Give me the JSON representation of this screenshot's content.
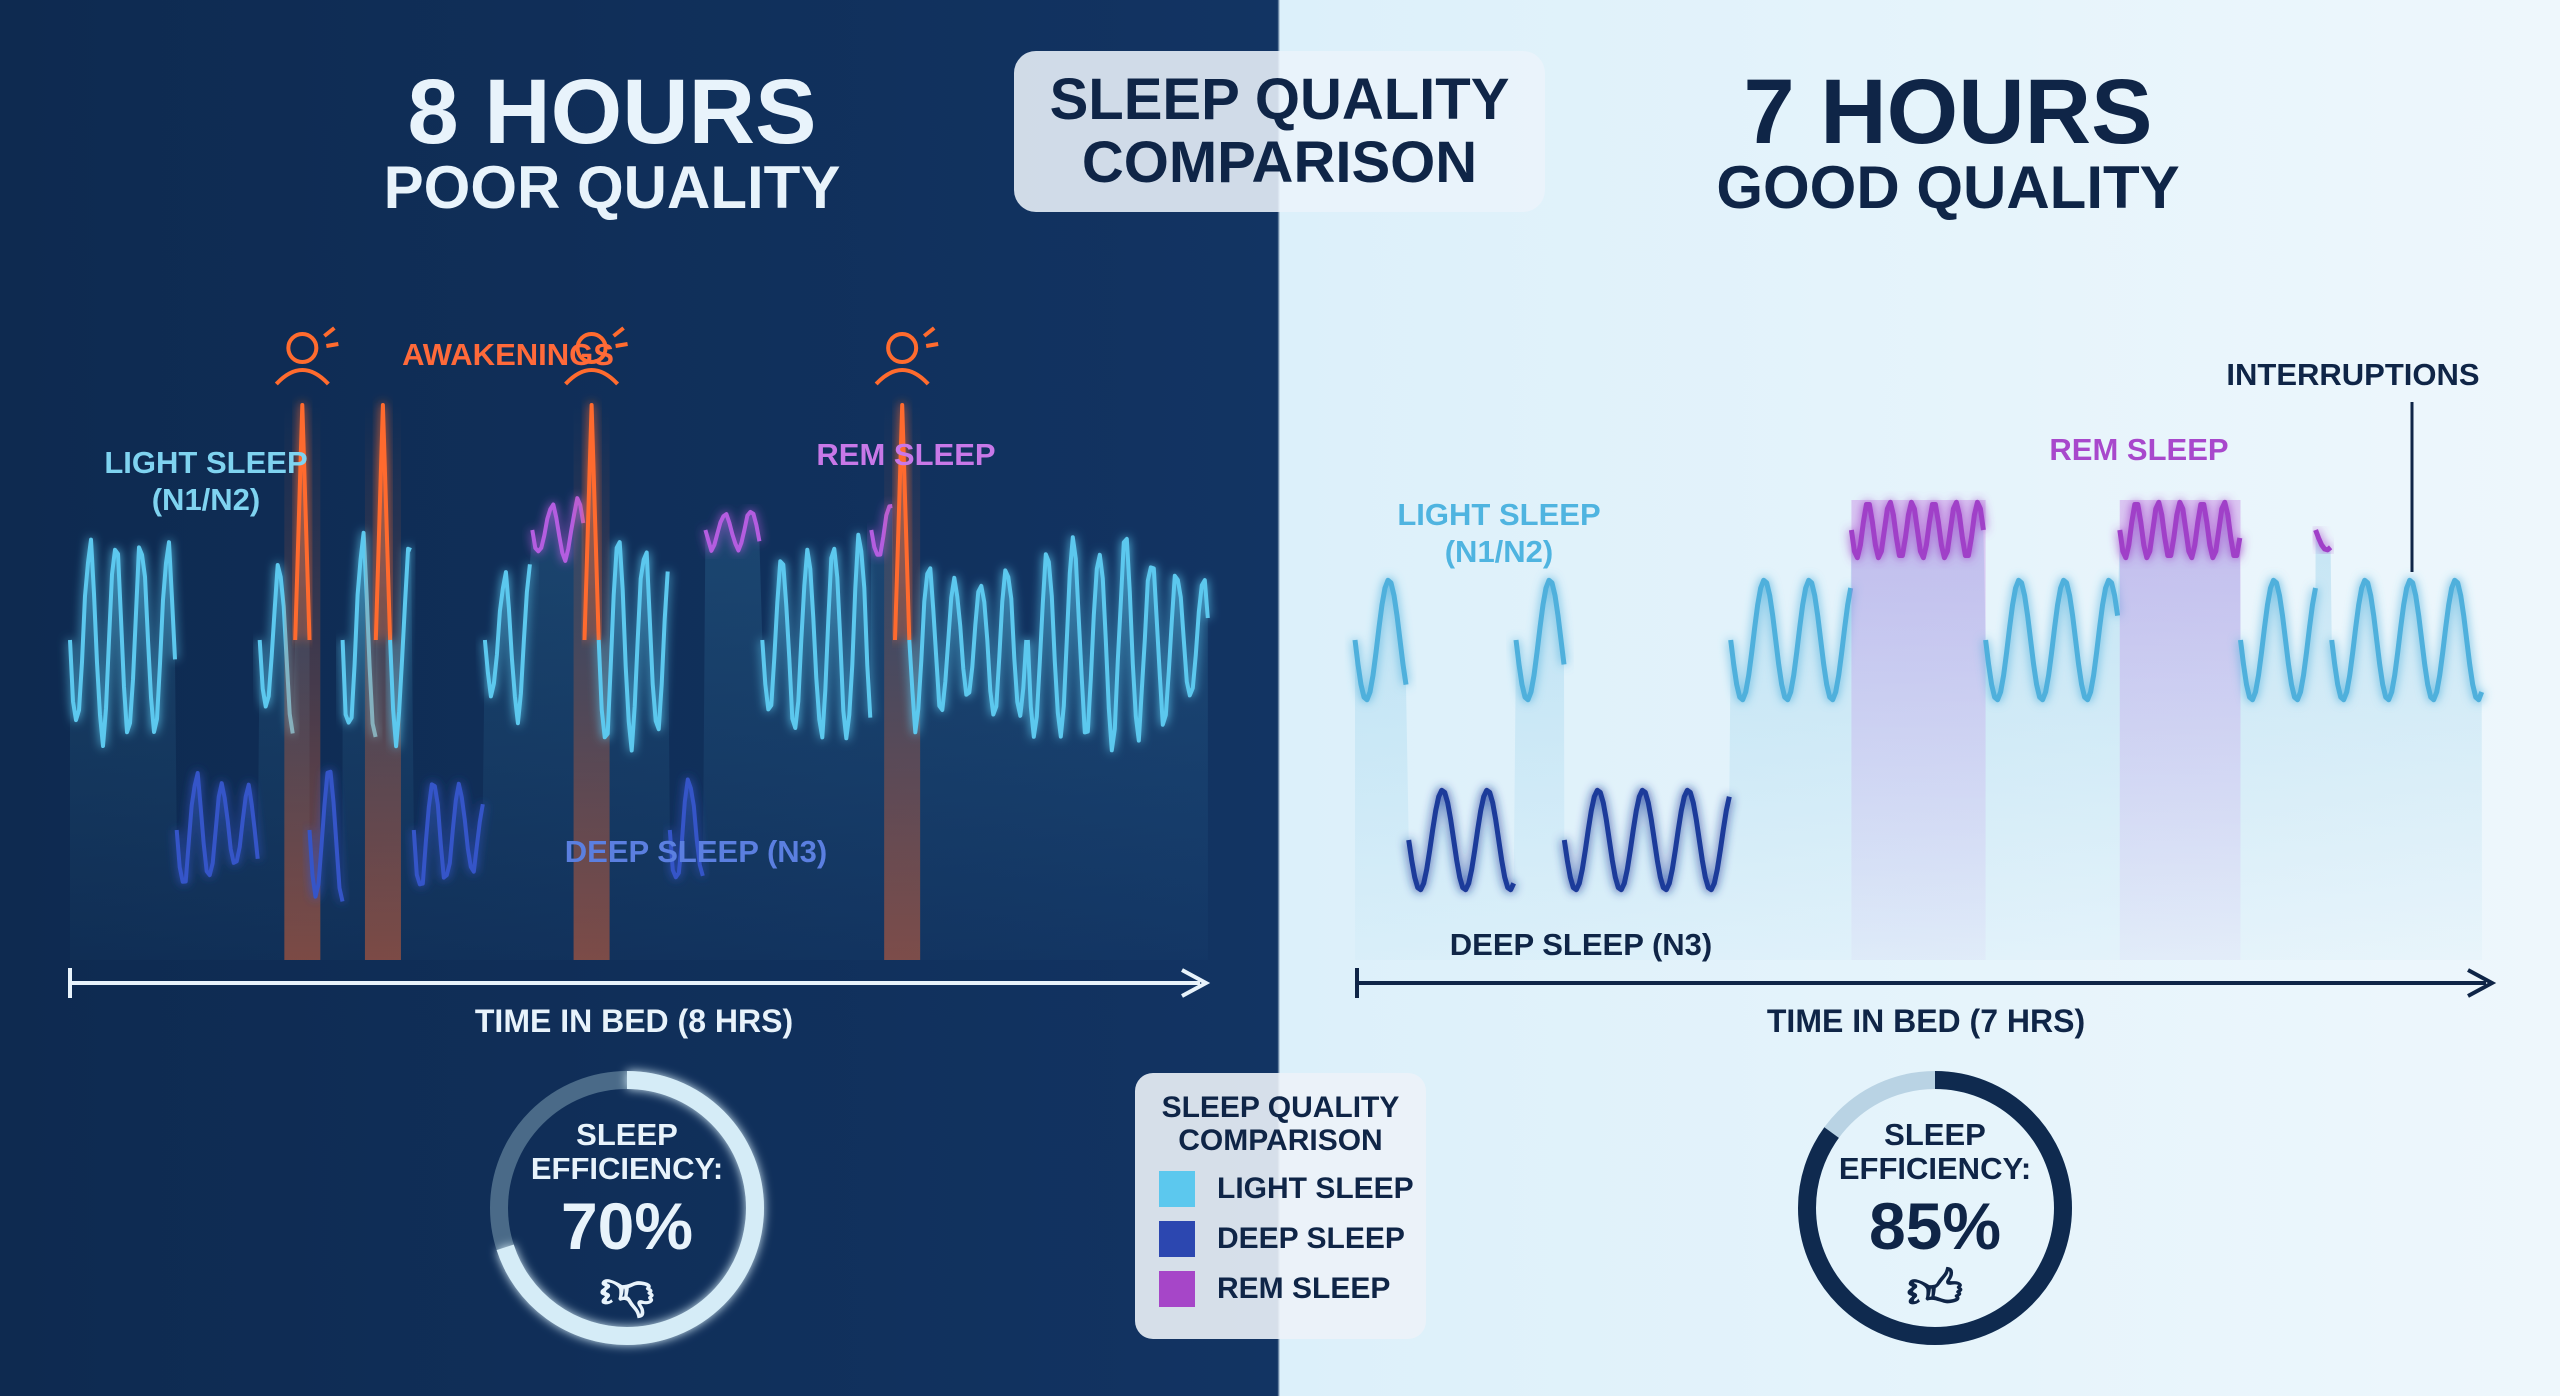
{
  "header": {
    "title_line1": "SLEEP QUALITY",
    "title_line2": "COMPARISON"
  },
  "left": {
    "hours": "8 HOURS",
    "quality": "POOR QUALITY",
    "labels": {
      "light": "LIGHT SLEEP",
      "light_sub": "(N1/N2)",
      "awakenings": "AWAKENINGS",
      "rem": "REM SLEEP",
      "deep": "DEEP SLEEP (N3)"
    },
    "axis_label": "TIME IN BED (8 HRS)",
    "efficiency_label1": "SLEEP",
    "efficiency_label2": "EFFICIENCY:",
    "efficiency_value": "70%",
    "efficiency_fraction": 0.7,
    "verdict_icon": "thumbs-down-icon"
  },
  "right": {
    "hours": "7 HOURS",
    "quality": "GOOD QUALITY",
    "labels": {
      "light": "LIGHT SLEEP",
      "light_sub": "(N1/N2)",
      "interruptions": "INTERRUPTIONS",
      "rem": "REM SLEEP",
      "deep": "DEEP SLEEP (N3)"
    },
    "axis_label": "TIME IN BED (7 HRS)",
    "efficiency_label1": "SLEEP",
    "efficiency_label2": "EFFICIENCY:",
    "efficiency_value": "85%",
    "efficiency_fraction": 0.85,
    "verdict_icon": "thumbs-up-icon"
  },
  "legend": {
    "title_line1": "SLEEP QUALITY",
    "title_line2": "COMPARISON",
    "items": [
      {
        "label": "LIGHT SLEEP",
        "color": "#5cc8ee"
      },
      {
        "label": "DEEP SLEEP",
        "color": "#2c47b0"
      },
      {
        "label": "REM SLEEP",
        "color": "#a646c8"
      }
    ]
  },
  "colors": {
    "light": "#5cc8ee",
    "deep": "#3554c8",
    "rem": "#b45de0",
    "awake": "#ff6b2e",
    "light_r": "#4fb0dc",
    "deep_r": "#1e3a9a",
    "rem_r": "#a040c8"
  },
  "chart_data": [
    {
      "type": "line",
      "title": "8 HOURS POOR QUALITY",
      "xlabel": "TIME IN BED (8 HRS)",
      "x_unit": "minutes",
      "xlim": [
        0,
        480
      ],
      "stages": [
        "awake",
        "rem",
        "light",
        "deep"
      ],
      "segments": [
        {
          "stage": "light",
          "minutes": 45
        },
        {
          "stage": "deep",
          "minutes": 35
        },
        {
          "stage": "light",
          "minutes": 15
        },
        {
          "stage": "awake",
          "minutes": 6
        },
        {
          "stage": "deep",
          "minutes": 14
        },
        {
          "stage": "light",
          "minutes": 14
        },
        {
          "stage": "awake",
          "minutes": 6
        },
        {
          "stage": "light",
          "minutes": 10
        },
        {
          "stage": "deep",
          "minutes": 30
        },
        {
          "stage": "light",
          "minutes": 20
        },
        {
          "stage": "rem",
          "minutes": 22
        },
        {
          "stage": "awake",
          "minutes": 6
        },
        {
          "stage": "light",
          "minutes": 30
        },
        {
          "stage": "deep",
          "minutes": 15
        },
        {
          "stage": "rem",
          "minutes": 24
        },
        {
          "stage": "light",
          "minutes": 46
        },
        {
          "stage": "rem",
          "minutes": 10
        },
        {
          "stage": "awake",
          "minutes": 6
        },
        {
          "stage": "light",
          "minutes": 50
        },
        {
          "stage": "light",
          "minutes": 76
        }
      ]
    },
    {
      "type": "line",
      "title": "7 HOURS GOOD QUALITY",
      "xlabel": "TIME IN BED (7 HRS)",
      "x_unit": "minutes",
      "xlim": [
        0,
        420
      ],
      "stages": [
        "awake",
        "rem",
        "light",
        "deep"
      ],
      "segments": [
        {
          "stage": "light",
          "minutes": 20
        },
        {
          "stage": "deep",
          "minutes": 40
        },
        {
          "stage": "light",
          "minutes": 18
        },
        {
          "stage": "deep",
          "minutes": 62
        },
        {
          "stage": "light",
          "minutes": 45
        },
        {
          "stage": "rem",
          "minutes": 50
        },
        {
          "stage": "light",
          "minutes": 50
        },
        {
          "stage": "rem",
          "minutes": 45
        },
        {
          "stage": "light",
          "minutes": 28
        },
        {
          "stage": "interruption",
          "minutes": 6
        },
        {
          "stage": "light",
          "minutes": 56
        }
      ]
    }
  ]
}
